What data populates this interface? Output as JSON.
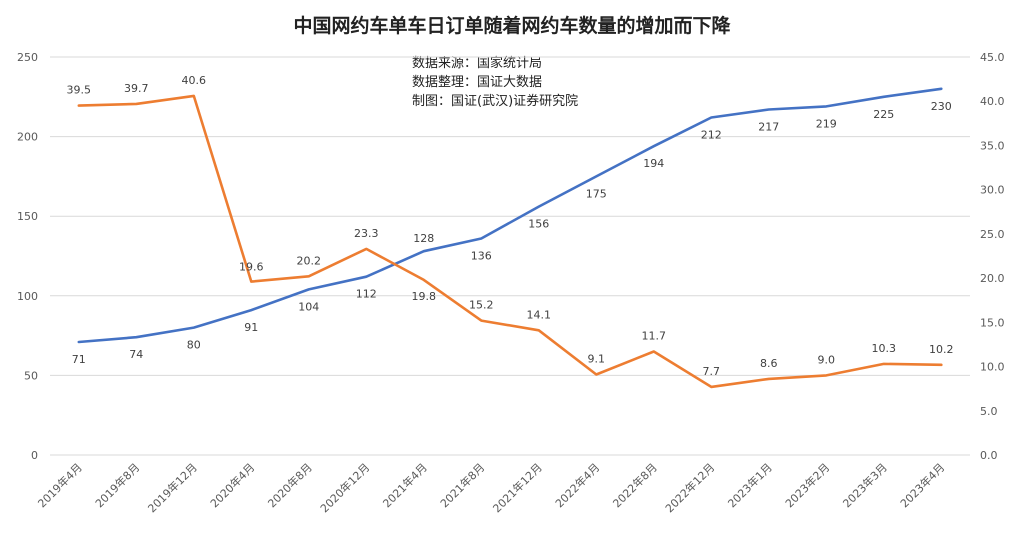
{
  "chart_data": {
    "type": "line",
    "title": "中国网约车单车日订单随着网约车数量的增加而下降",
    "annotations": [
      "数据来源：国家统计局",
      "数据整理：国证大数据",
      "制图：国证(武汉)证券研究院"
    ],
    "categories": [
      "2019年4月",
      "2019年8月",
      "2019年12月",
      "2020年4月",
      "2020年8月",
      "2020年12月",
      "2021年4月",
      "2021年8月",
      "2021年12月",
      "2022年4月",
      "2022年8月",
      "2022年12月",
      "2023年1月",
      "2023年2月",
      "2023年3月",
      "2023年4月"
    ],
    "series": [
      {
        "axis": "left",
        "color": "#4472c4",
        "values": [
          71,
          74,
          80,
          91,
          104,
          112,
          128,
          136,
          156,
          175,
          194,
          212,
          217,
          219,
          225,
          230
        ],
        "labels": [
          "71",
          "74",
          "80",
          "91",
          "104",
          "112",
          "128",
          "136",
          "156",
          "175",
          "194",
          "212",
          "217",
          "219",
          "225",
          "230"
        ]
      },
      {
        "axis": "right",
        "color": "#ed7d31",
        "values": [
          39.5,
          39.7,
          40.6,
          19.6,
          20.2,
          23.3,
          19.8,
          15.2,
          14.1,
          9.1,
          11.7,
          7.7,
          8.6,
          9.0,
          10.3,
          10.2
        ],
        "labels": [
          "39.5",
          "39.7",
          "40.6",
          "19.6",
          "20.2",
          "23.3",
          "19.8",
          "15.2",
          "14.1",
          "9.1",
          "11.7",
          "7.7",
          "8.6",
          "9.0",
          "10.3",
          "10.2"
        ]
      }
    ],
    "y_left": {
      "ylim": [
        0,
        250
      ],
      "ticks": [
        "0",
        "50",
        "100",
        "150",
        "200",
        "250"
      ]
    },
    "y_right": {
      "ylim": [
        0,
        45
      ],
      "ticks": [
        "0.0",
        "5.0",
        "10.0",
        "15.0",
        "20.0",
        "25.0",
        "30.0",
        "35.0",
        "40.0",
        "45.0"
      ]
    },
    "grid": true,
    "legend": "none"
  }
}
